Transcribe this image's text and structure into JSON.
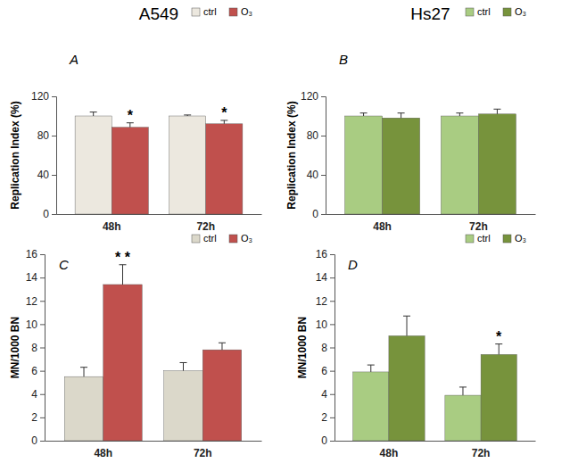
{
  "chart_data": [
    {
      "type": "bar",
      "title": "A549",
      "panel_label": "A",
      "y_label": "Replication Index (%)",
      "categories": [
        "48h",
        "72h"
      ],
      "ylim": [
        0,
        120
      ],
      "yticks": [
        0,
        40,
        80,
        120
      ],
      "legend": "top-right",
      "series": [
        {
          "name": "ctrl",
          "color": "#ece8df",
          "values": [
            100,
            100
          ],
          "errors": [
            4,
            1
          ],
          "annotations": [
            null,
            null
          ]
        },
        {
          "name": "O₃",
          "color": "#c0504d",
          "values": [
            88.5,
            92
          ],
          "errors": [
            4.5,
            3.5
          ],
          "annotations": [
            "*",
            "*"
          ]
        }
      ]
    },
    {
      "type": "bar",
      "title": "Hs27",
      "panel_label": "B",
      "y_label": "Replication Index (%)",
      "categories": [
        "48h",
        "72h"
      ],
      "ylim": [
        0,
        120
      ],
      "yticks": [
        0,
        40,
        80,
        120
      ],
      "legend": "top-right",
      "series": [
        {
          "name": "ctrl",
          "color": "#a9cc82",
          "values": [
            100,
            100
          ],
          "errors": [
            3,
            3
          ],
          "annotations": [
            null,
            null
          ]
        },
        {
          "name": "O₃",
          "color": "#77933c",
          "values": [
            98,
            102
          ],
          "errors": [
            5,
            5
          ],
          "annotations": [
            null,
            null
          ]
        }
      ]
    },
    {
      "type": "bar",
      "panel_label": "C",
      "y_label": "MN/1000 BN",
      "categories": [
        "48h",
        "72h"
      ],
      "ylim": [
        0,
        16
      ],
      "yticks": [
        0,
        2,
        4,
        6,
        8,
        10,
        12,
        14,
        16
      ],
      "legend": "top-right",
      "series": [
        {
          "name": "ctrl",
          "color": "#dbd8ca",
          "values": [
            5.5,
            6.0
          ],
          "errors": [
            0.8,
            0.7
          ],
          "annotations": [
            null,
            null
          ]
        },
        {
          "name": "O₃",
          "color": "#c0504d",
          "values": [
            13.4,
            7.8
          ],
          "errors": [
            1.7,
            0.6
          ],
          "annotations": [
            "* *",
            null
          ]
        }
      ]
    },
    {
      "type": "bar",
      "panel_label": "D",
      "y_label": "MN/1000 BN",
      "categories": [
        "48h",
        "72h"
      ],
      "ylim": [
        0,
        16
      ],
      "yticks": [
        0,
        2,
        4,
        6,
        8,
        10,
        12,
        14,
        16
      ],
      "legend": "top-right",
      "series": [
        {
          "name": "ctrl",
          "color": "#a9cc82",
          "values": [
            5.9,
            3.9
          ],
          "errors": [
            0.6,
            0.7
          ],
          "annotations": [
            null,
            null
          ]
        },
        {
          "name": "O₃",
          "color": "#77933c",
          "values": [
            9.0,
            7.4
          ],
          "errors": [
            1.7,
            0.9
          ],
          "annotations": [
            null,
            "*"
          ]
        }
      ]
    }
  ]
}
